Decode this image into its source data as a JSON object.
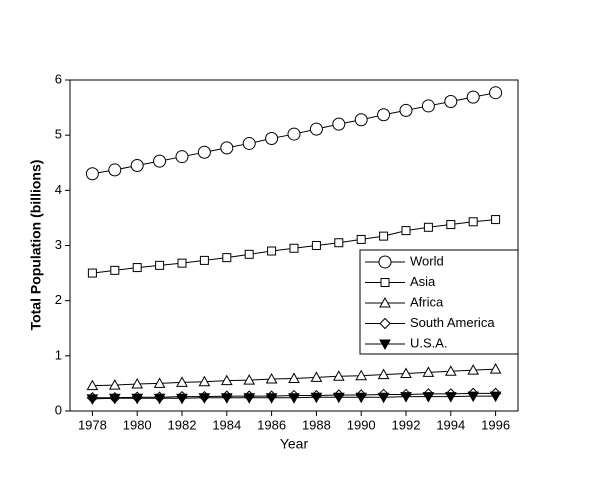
{
  "chart_data": {
    "type": "line",
    "x_label": "Year",
    "y_label": "Total Population (billions)",
    "x": [
      1978,
      1979,
      1980,
      1981,
      1982,
      1983,
      1984,
      1985,
      1986,
      1987,
      1988,
      1989,
      1990,
      1991,
      1992,
      1993,
      1994,
      1995,
      1996
    ],
    "xlim": [
      1977,
      1997
    ],
    "xticks": [
      1978,
      1980,
      1982,
      1984,
      1986,
      1988,
      1990,
      1992,
      1994,
      1996
    ],
    "ylim": [
      0,
      6
    ],
    "yticks": [
      0,
      1,
      2,
      3,
      4,
      5,
      6
    ],
    "legend": "center right",
    "series": [
      {
        "name": "World",
        "color": "#000000",
        "marker": "circle",
        "values": [
          4.3,
          4.37,
          4.45,
          4.53,
          4.61,
          4.69,
          4.77,
          4.85,
          4.94,
          5.02,
          5.11,
          5.2,
          5.28,
          5.37,
          5.45,
          5.53,
          5.61,
          5.69,
          5.77
        ]
      },
      {
        "name": "Asia",
        "color": "#000000",
        "marker": "square",
        "values": [
          2.5,
          2.55,
          2.6,
          2.64,
          2.68,
          2.73,
          2.78,
          2.84,
          2.9,
          2.95,
          3.0,
          3.05,
          3.11,
          3.17,
          3.27,
          3.33,
          3.38,
          3.43,
          3.47
        ]
      },
      {
        "name": "Africa",
        "color": "#000000",
        "marker": "triangle",
        "values": [
          0.46,
          0.47,
          0.49,
          0.5,
          0.52,
          0.53,
          0.55,
          0.56,
          0.58,
          0.59,
          0.61,
          0.63,
          0.64,
          0.66,
          0.68,
          0.7,
          0.72,
          0.74,
          0.76
        ]
      },
      {
        "name": "South America",
        "color": "#000000",
        "marker": "diamond",
        "values": [
          0.24,
          0.24,
          0.25,
          0.25,
          0.26,
          0.26,
          0.27,
          0.27,
          0.27,
          0.28,
          0.28,
          0.29,
          0.29,
          0.3,
          0.3,
          0.31,
          0.31,
          0.32,
          0.32
        ]
      },
      {
        "name": "U.S.A.",
        "color": "#000000",
        "marker": "filled-down-triangle",
        "values": [
          0.22,
          0.23,
          0.23,
          0.23,
          0.23,
          0.24,
          0.24,
          0.24,
          0.24,
          0.24,
          0.25,
          0.25,
          0.25,
          0.25,
          0.26,
          0.26,
          0.26,
          0.27,
          0.27
        ]
      }
    ]
  }
}
